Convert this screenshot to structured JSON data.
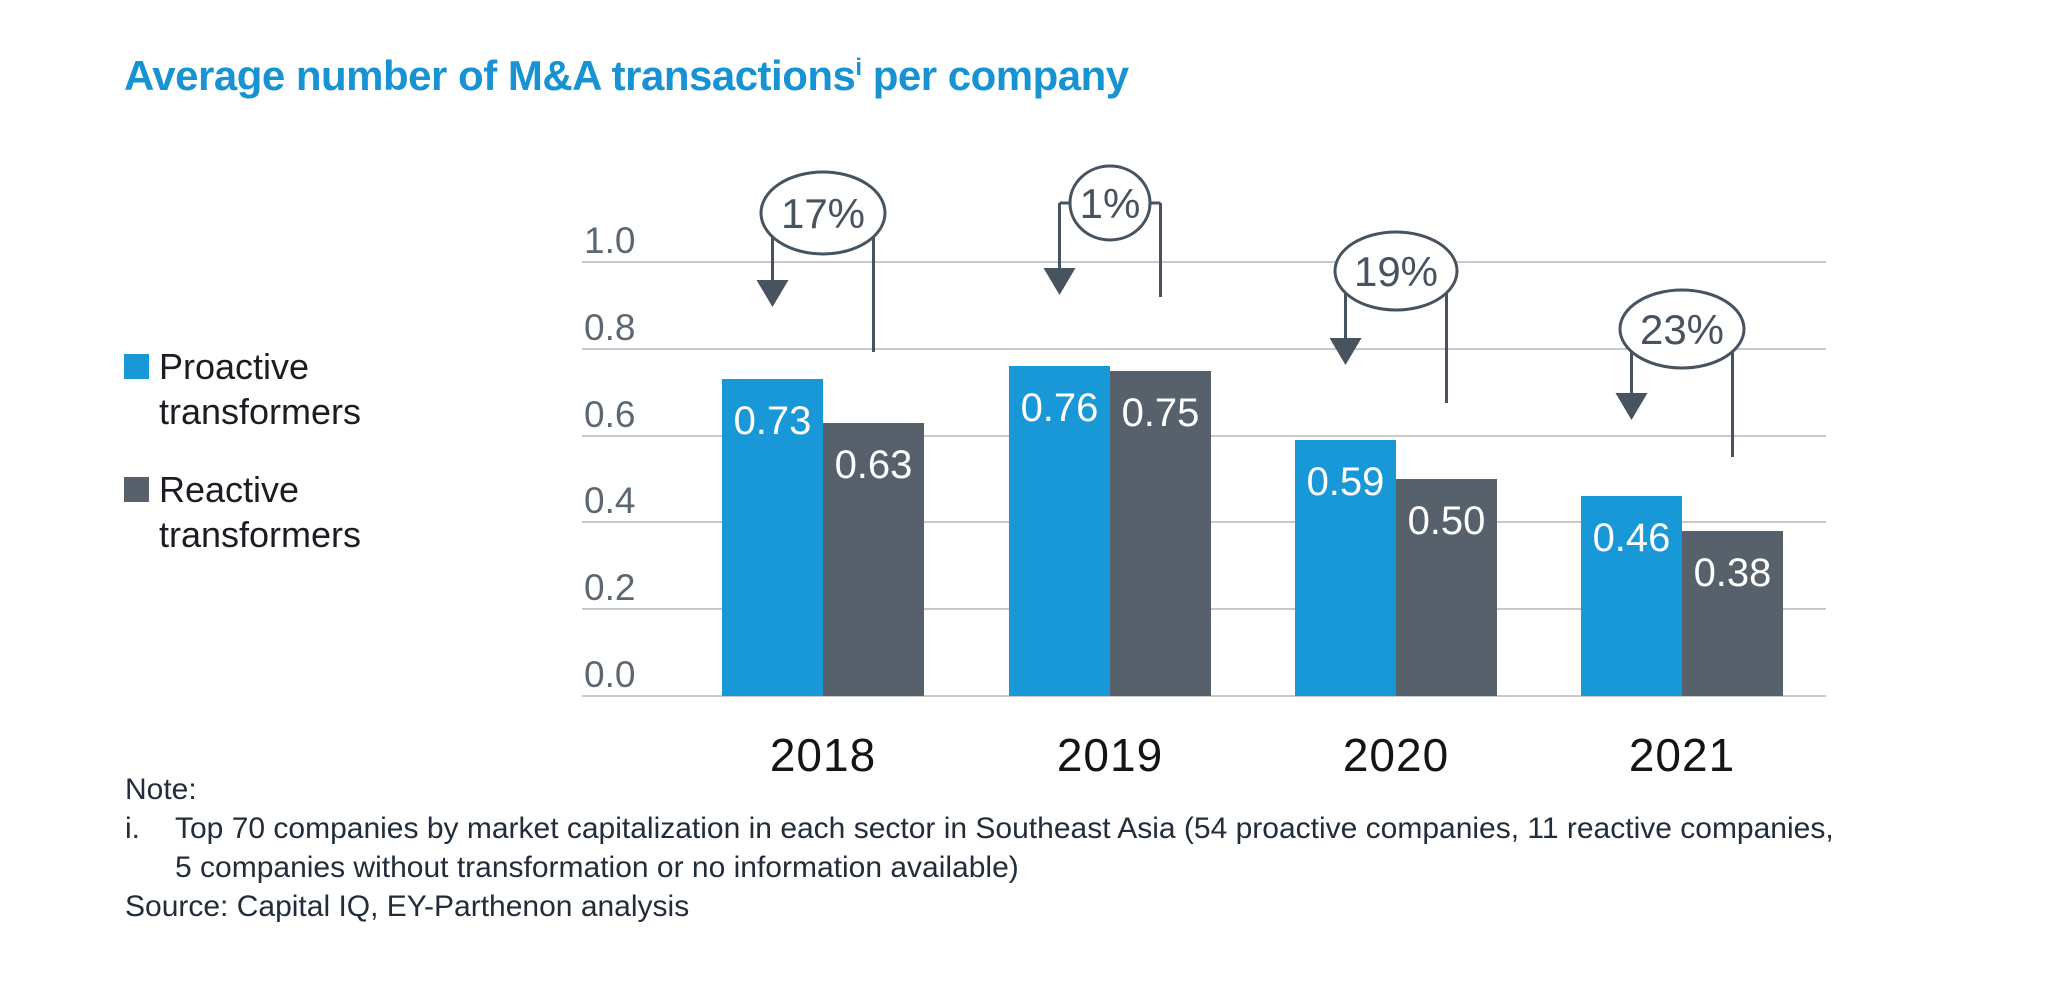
{
  "title": {
    "main": "Average number of M&A transactions",
    "superscript": "i",
    "suffix": " per company"
  },
  "chart_data": {
    "type": "bar",
    "title": "Average number of M&A transactions per company",
    "categories": [
      "2018",
      "2019",
      "2020",
      "2021"
    ],
    "series": [
      {
        "name": "Proactive transformers",
        "values": [
          0.73,
          0.76,
          0.59,
          0.46
        ]
      },
      {
        "name": "Reactive transformers",
        "values": [
          0.63,
          0.75,
          0.5,
          0.38
        ]
      }
    ],
    "annotations": [
      {
        "category": "2018",
        "label": "17%"
      },
      {
        "category": "2019",
        "label": "1%"
      },
      {
        "category": "2020",
        "label": "19%"
      },
      {
        "category": "2021",
        "label": "23%"
      }
    ],
    "ylim": [
      0.0,
      1.0
    ],
    "yticks": [
      "1.0",
      "0.8",
      "0.6",
      "0.4",
      "0.2",
      "0.0"
    ],
    "grid": true,
    "legend_position": "left",
    "value_label_format": "2-decimals"
  },
  "colors": {
    "proactive": "#1898d6",
    "reactive": "#56616c",
    "title": "#1792d2",
    "annotation": "#47535f",
    "gridline": "#c7c9cc",
    "axis_label": "#5d6771",
    "year_label": "#111418",
    "value_label": "#ffffff",
    "note_text": "#222d39"
  },
  "notes": {
    "note_label": "Note:",
    "item_marker": "i.",
    "item_lines": [
      "Top 70 companies by market capitalization in each sector in Southeast Asia (54 proactive companies, 11 reactive companies,",
      "5 companies without transformation or no information available)"
    ],
    "source": "Source: Capital IQ, EY-Parthenon analysis"
  }
}
